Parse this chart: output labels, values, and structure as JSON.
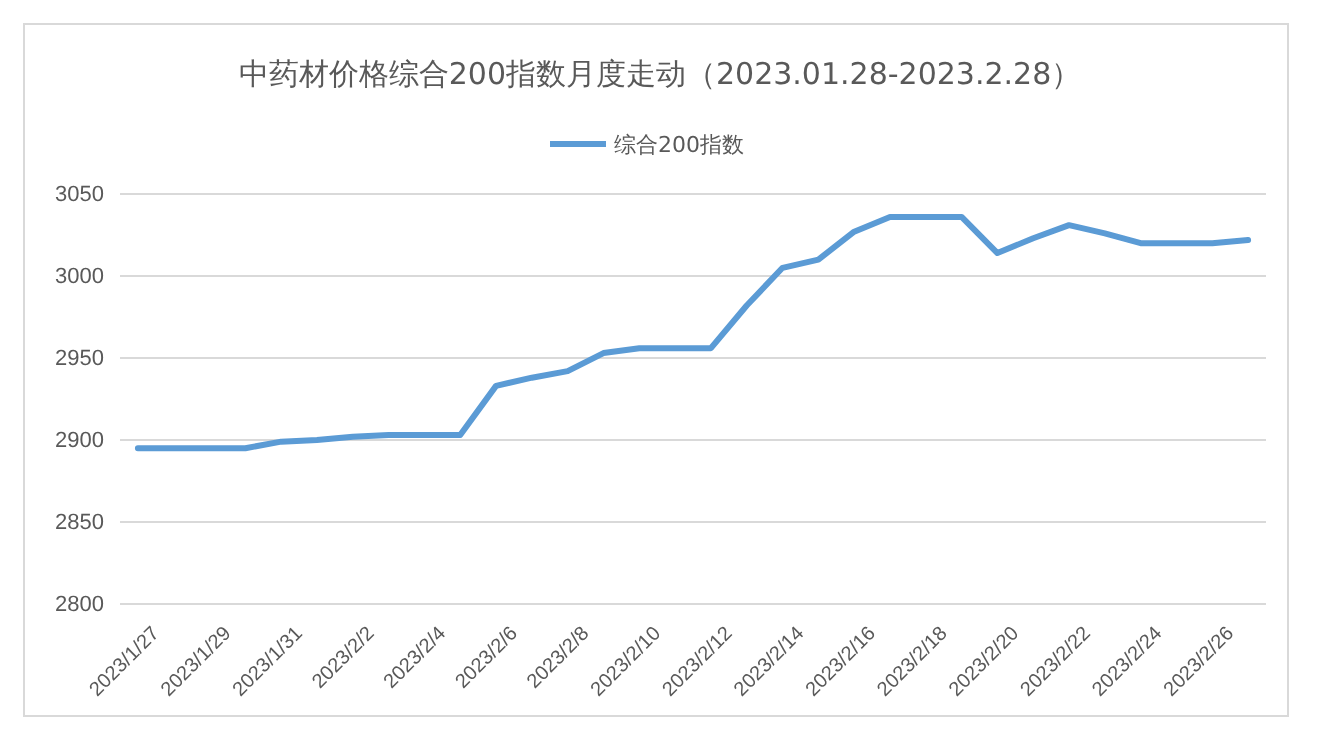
{
  "chart_data": {
    "type": "line",
    "title": "中药材价格综合200指数月度走动（2023.01.28-2023.2.28）",
    "categories": [
      "2023/1/27",
      null,
      "2023/1/29",
      null,
      "2023/1/31",
      null,
      "2023/2/2",
      null,
      "2023/2/4",
      null,
      "2023/2/6",
      null,
      "2023/2/8",
      null,
      "2023/2/10",
      null,
      "2023/2/12",
      null,
      "2023/2/14",
      null,
      "2023/2/16",
      null,
      "2023/2/18",
      null,
      "2023/2/20",
      null,
      "2023/2/22",
      null,
      "2023/2/24",
      null,
      "2023/2/26",
      null
    ],
    "series": [
      {
        "name": "综合200指数",
        "color": "#5b9bd5",
        "values": [
          2895,
          2895,
          2895,
          2895,
          2899,
          2900,
          2902,
          2903,
          2903,
          2903,
          2933,
          2938,
          2942,
          2953,
          2956,
          2956,
          2956,
          2982,
          3005,
          3010,
          3027,
          3036,
          3036,
          3036,
          3014,
          3023,
          3031,
          3026,
          3020,
          3020,
          3020,
          3022
        ]
      }
    ],
    "ylim": [
      2800,
      3050
    ],
    "yticks": [
      2800,
      2850,
      2900,
      2950,
      3000,
      3050
    ],
    "grid": "y",
    "legend": "top",
    "marker": "none",
    "line_style": "solid"
  }
}
